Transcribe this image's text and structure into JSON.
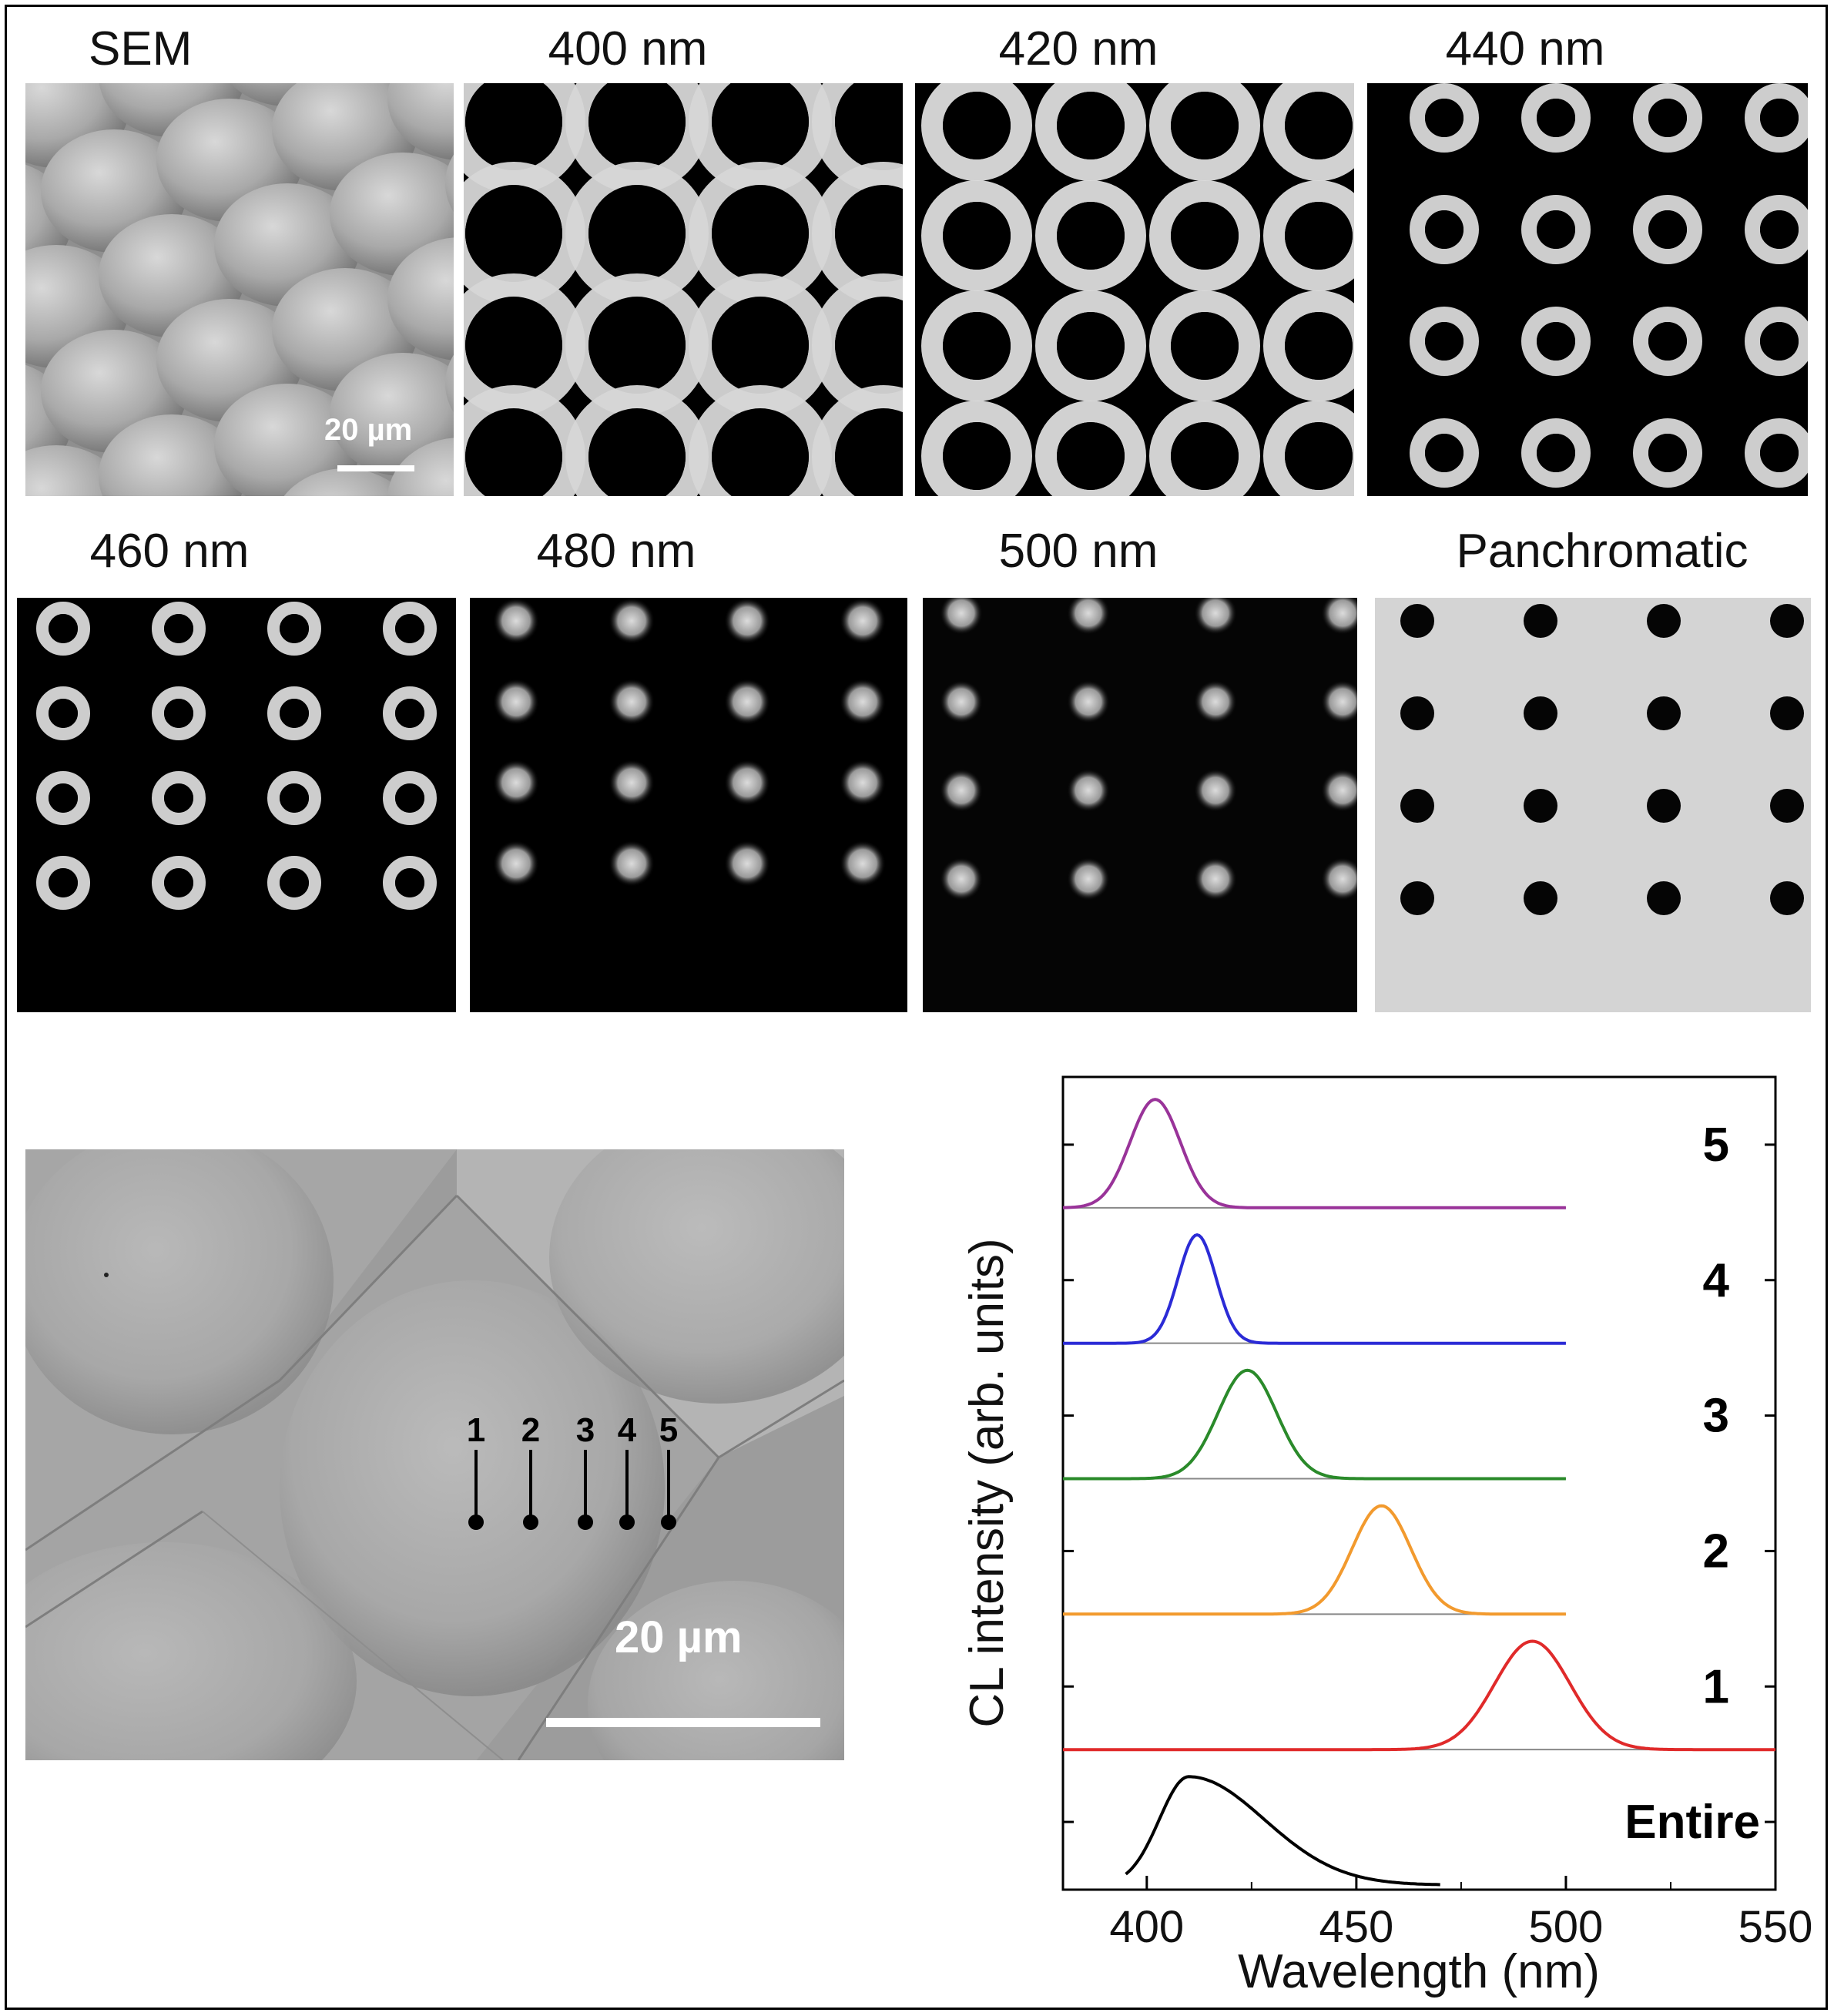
{
  "panel_labels": {
    "sem": "SEM",
    "nm400": "400 nm",
    "nm420": "420 nm",
    "nm440": "440 nm",
    "nm460": "460 nm",
    "nm480": "480 nm",
    "nm500": "500 nm",
    "pan": "Panchromatic"
  },
  "scale_bars": {
    "small": "20 µm",
    "large": "20 µm"
  },
  "points": [
    "1",
    "2",
    "3",
    "4",
    "5"
  ],
  "colors": {
    "c5": "#993399",
    "c4": "#2b2bd6",
    "c3": "#2a8a2a",
    "c2": "#f29a2e",
    "c1": "#e02a2a",
    "entire": "#000000"
  },
  "chart_data": {
    "type": "line",
    "xlabel": "Wavelength (nm)",
    "ylabel": "CL intensity (arb. units)",
    "xlim": [
      380,
      550
    ],
    "xticks": [
      "400",
      "450",
      "500",
      "550"
    ],
    "series": [
      {
        "name": "5",
        "peak": 402,
        "width": 6
      },
      {
        "name": "4",
        "peak": 412,
        "width": 4.5
      },
      {
        "name": "3",
        "peak": 424,
        "width": 7
      },
      {
        "name": "2",
        "peak": 456,
        "width": 7
      },
      {
        "name": "1",
        "peak": 492,
        "width": 9
      },
      {
        "name": "Entire",
        "peak": 410,
        "width": 18
      }
    ]
  }
}
